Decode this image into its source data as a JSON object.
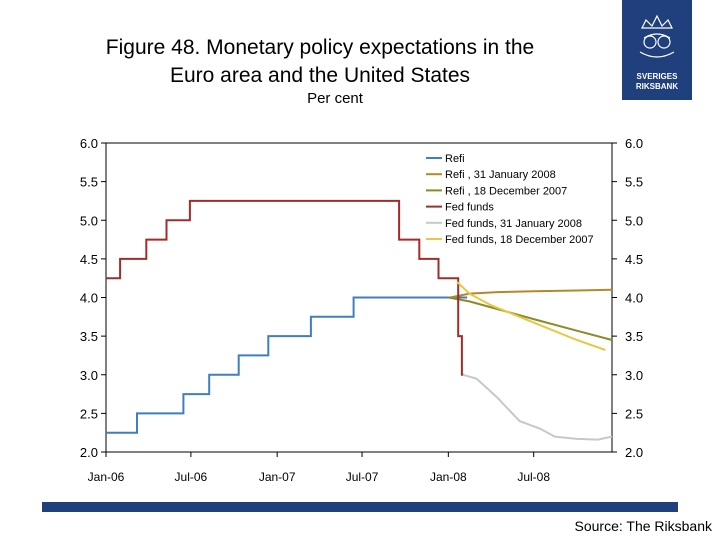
{
  "header": {
    "title_line1": "Figure 48. Monetary policy expectations in the",
    "title_line2": "Euro area and the United States",
    "subtitle": "Per cent"
  },
  "logo": {
    "line1": "SVERIGES",
    "line2": "RIKSBANK",
    "icon": "crown-emblem-icon",
    "color": "#1f3f7d"
  },
  "footer": {
    "source": "Source: The Riksbank",
    "bar_color": "#1f3f7d"
  },
  "chart_data": {
    "type": "line",
    "title": "Figure 48. Monetary policy expectations in the Euro area and the United States",
    "ylabel": "Per cent",
    "ylim": [
      2.0,
      6.0
    ],
    "yticks": [
      "2.0",
      "2.5",
      "3.0",
      "3.5",
      "4.0",
      "4.5",
      "5.0",
      "5.5",
      "6.0"
    ],
    "xlim": [
      "2006-01-01",
      "2008-12-15"
    ],
    "xticks": [
      {
        "date": "2006-01-01",
        "label": "Jan-06"
      },
      {
        "date": "2006-07-01",
        "label": "Jul-06"
      },
      {
        "date": "2007-01-01",
        "label": "Jan-07"
      },
      {
        "date": "2007-07-01",
        "label": "Jul-07"
      },
      {
        "date": "2008-01-01",
        "label": "Jan-08"
      },
      {
        "date": "2008-07-01",
        "label": "Jul-08"
      }
    ],
    "grid": false,
    "legend": "top-right",
    "series": [
      {
        "name": "Refi",
        "color": "#3f7fbf",
        "step": true,
        "points": [
          [
            "2006-01-01",
            2.25
          ],
          [
            "2006-03-08",
            2.5
          ],
          [
            "2006-06-15",
            2.75
          ],
          [
            "2006-08-09",
            3.0
          ],
          [
            "2006-10-11",
            3.25
          ],
          [
            "2006-12-13",
            3.5
          ],
          [
            "2007-03-14",
            3.75
          ],
          [
            "2007-06-13",
            4.0
          ],
          [
            "2008-02-10",
            4.0
          ]
        ]
      },
      {
        "name": "Refi , 31 January 2008",
        "color": "#b5882a",
        "step": false,
        "points": [
          [
            "2008-01-05",
            4.0
          ],
          [
            "2008-02-15",
            4.05
          ],
          [
            "2008-04-15",
            4.07
          ],
          [
            "2008-07-01",
            4.08
          ],
          [
            "2008-10-01",
            4.09
          ],
          [
            "2008-12-15",
            4.1
          ]
        ]
      },
      {
        "name": "Refi , 18 December 2007",
        "color": "#8b8b2a",
        "step": false,
        "points": [
          [
            "2008-01-01",
            4.0
          ],
          [
            "2008-02-15",
            3.95
          ],
          [
            "2008-04-15",
            3.85
          ],
          [
            "2008-07-01",
            3.72
          ],
          [
            "2008-10-01",
            3.57
          ],
          [
            "2008-12-15",
            3.45
          ]
        ]
      },
      {
        "name": "Fed funds",
        "color": "#a52a2a",
        "step": true,
        "points": [
          [
            "2006-01-01",
            4.25
          ],
          [
            "2006-01-31",
            4.5
          ],
          [
            "2006-03-28",
            4.75
          ],
          [
            "2006-05-10",
            5.0
          ],
          [
            "2006-06-29",
            5.25
          ],
          [
            "2007-09-18",
            4.75
          ],
          [
            "2007-10-31",
            4.5
          ],
          [
            "2007-12-11",
            4.25
          ],
          [
            "2008-01-22",
            3.5
          ],
          [
            "2008-01-30",
            3.0
          ],
          [
            "2008-02-03",
            3.0
          ]
        ]
      },
      {
        "name": "Fed funds, 31 January 2008",
        "color": "#c8c8c8",
        "step": false,
        "points": [
          [
            "2008-02-01",
            3.0
          ],
          [
            "2008-03-01",
            2.95
          ],
          [
            "2008-04-15",
            2.7
          ],
          [
            "2008-06-01",
            2.4
          ],
          [
            "2008-07-15",
            2.3
          ],
          [
            "2008-08-15",
            2.2
          ],
          [
            "2008-10-01",
            2.17
          ],
          [
            "2008-11-15",
            2.16
          ],
          [
            "2008-12-15",
            2.2
          ]
        ]
      },
      {
        "name": "Fed funds, 18 December 2007",
        "color": "#e8c840",
        "step": false,
        "points": [
          [
            "2008-01-20",
            4.2
          ],
          [
            "2008-02-15",
            4.05
          ],
          [
            "2008-04-01",
            3.9
          ],
          [
            "2008-06-01",
            3.75
          ],
          [
            "2008-08-01",
            3.6
          ],
          [
            "2008-10-01",
            3.45
          ],
          [
            "2008-12-01",
            3.32
          ]
        ]
      }
    ]
  }
}
